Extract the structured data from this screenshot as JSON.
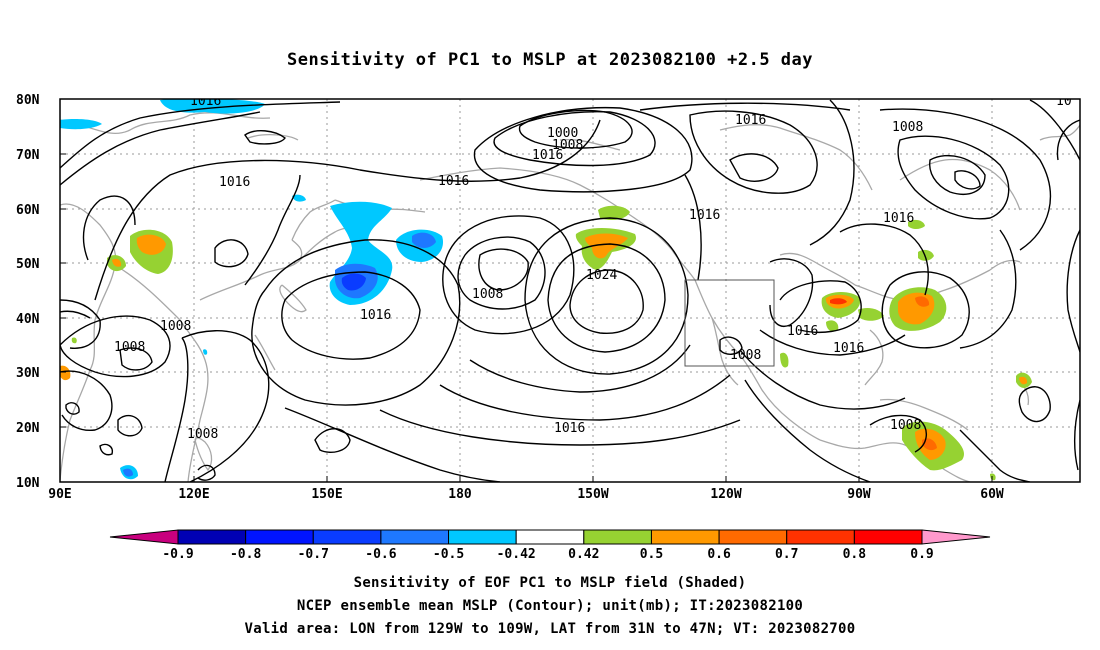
{
  "title": "Sensitivity of PC1 to MSLP at 2023082100 +2.5 day",
  "lat_labels": [
    "80N",
    "70N",
    "60N",
    "50N",
    "40N",
    "30N",
    "20N",
    "10N"
  ],
  "lon_labels": [
    "90E",
    "120E",
    "150E",
    "180",
    "150W",
    "120W",
    "90W",
    "60W"
  ],
  "contour_labels": [
    "1016",
    "1000",
    "1008",
    "1016",
    "1016",
    "1008",
    "1016",
    "1016",
    "1016",
    "1016",
    "1024",
    "1008",
    "1016",
    "1008",
    "1008",
    "1016",
    "1008",
    "1016",
    "1016",
    "1008",
    "1008",
    "10"
  ],
  "colorbar": {
    "labels": [
      "-0.9",
      "-0.8",
      "-0.7",
      "-0.6",
      "-0.5",
      "-0.42",
      "0.42",
      "0.5",
      "0.6",
      "0.7",
      "0.8",
      "0.9"
    ],
    "colors": [
      "#c8007e",
      "#0000b4",
      "#0014ff",
      "#0a3cff",
      "#1e78ff",
      "#00c8ff",
      "#ffffff",
      "#96d232",
      "#ff9900",
      "#ff6a00",
      "#ff3200",
      "#ff0000",
      "#ff99cc"
    ]
  },
  "footer": {
    "line1": "Sensitivity of EOF PC1 to MSLP field (Shaded)",
    "line2": "NCEP ensemble mean MSLP (Contour); unit(mb); IT:2023082100",
    "line3": "Valid area: LON from 129W to 109W, LAT from 31N to 47N; VT: 2023082700"
  }
}
